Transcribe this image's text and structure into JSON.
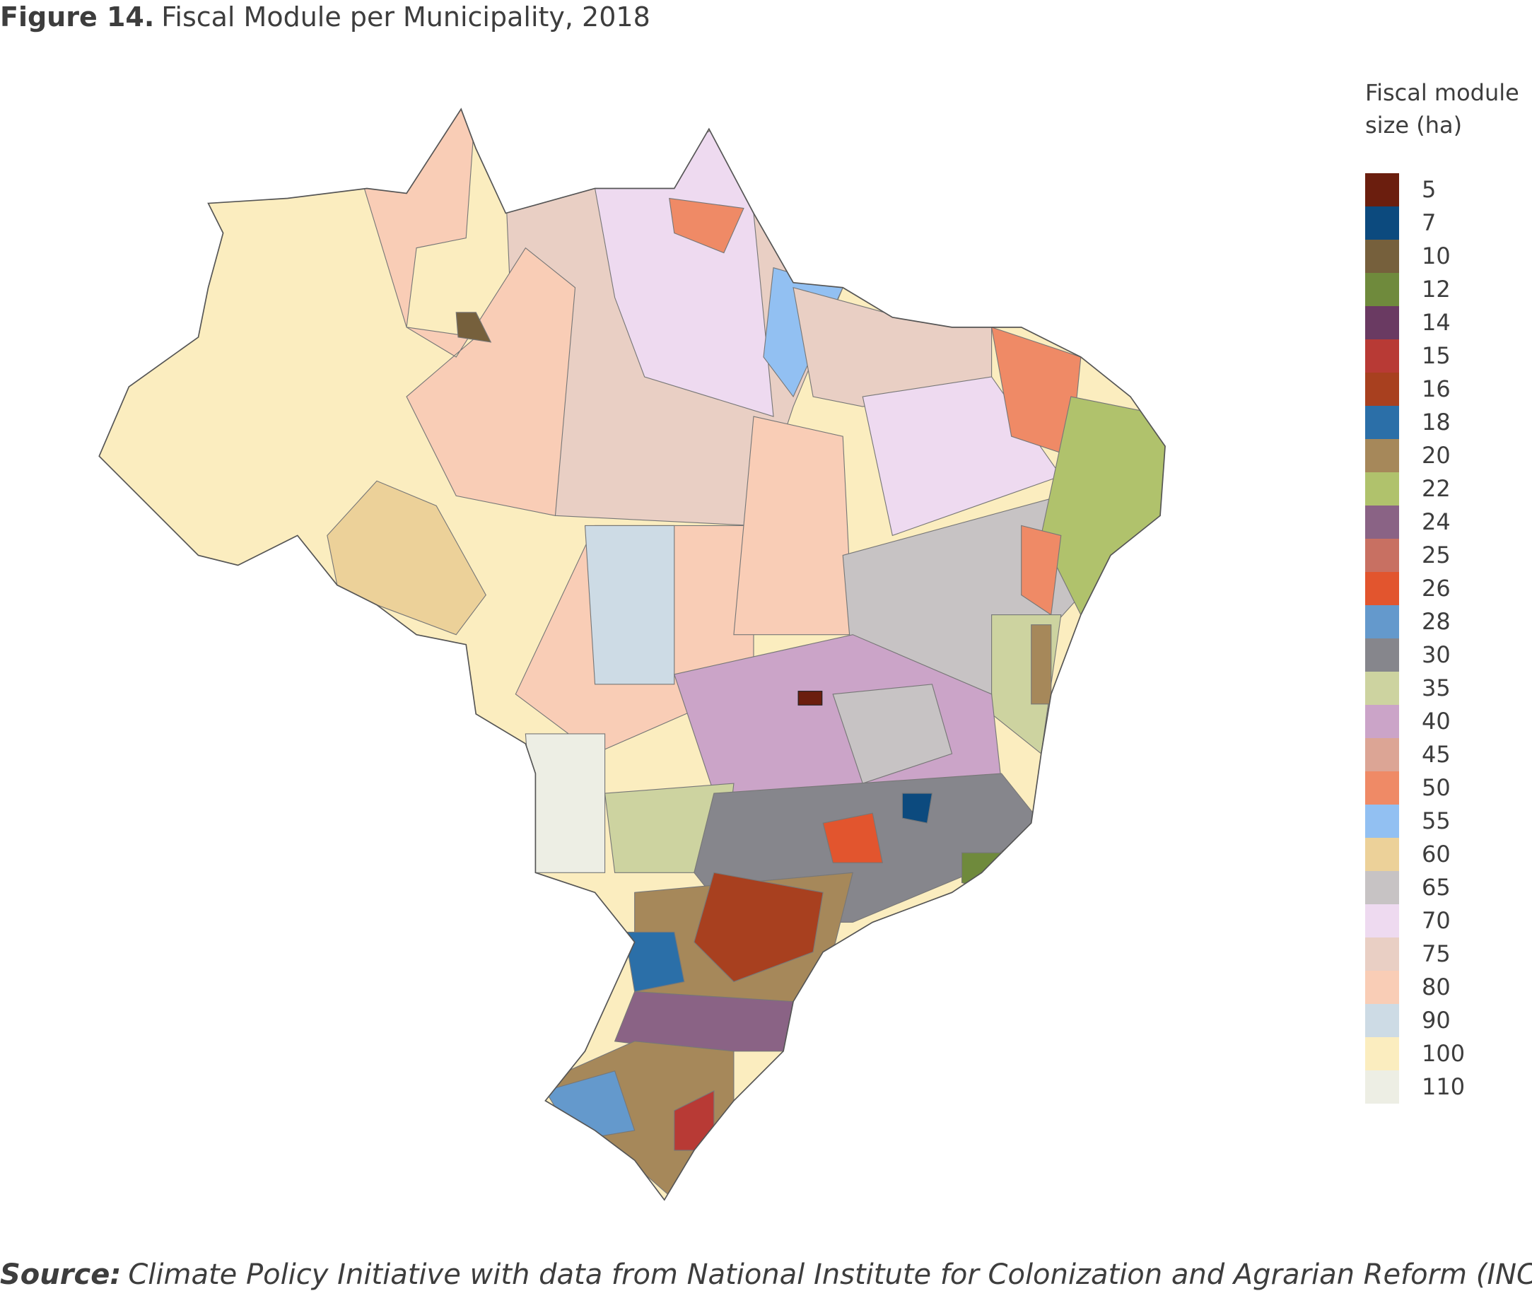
{
  "title": {
    "label": "Figure 14.",
    "text": "Fiscal Module per Municipality, 2018"
  },
  "legend": {
    "title": "Fiscal module size (ha)",
    "items": [
      {
        "value": 5,
        "color": "#6b1e0e"
      },
      {
        "value": 7,
        "color": "#0c4a7e"
      },
      {
        "value": 10,
        "color": "#76603c"
      },
      {
        "value": 12,
        "color": "#6f8a3c"
      },
      {
        "value": 14,
        "color": "#6a3a62"
      },
      {
        "value": 15,
        "color": "#b83a35"
      },
      {
        "value": 16,
        "color": "#a8401f"
      },
      {
        "value": 18,
        "color": "#2b6fa8"
      },
      {
        "value": 20,
        "color": "#a6885a"
      },
      {
        "value": 22,
        "color": "#b0c26c"
      },
      {
        "value": 24,
        "color": "#8a6385"
      },
      {
        "value": 25,
        "color": "#c87062"
      },
      {
        "value": 26,
        "color": "#e2552e"
      },
      {
        "value": 28,
        "color": "#6499cc"
      },
      {
        "value": 30,
        "color": "#86868c"
      },
      {
        "value": 35,
        "color": "#cdd3a0"
      },
      {
        "value": 40,
        "color": "#cba4c8"
      },
      {
        "value": 45,
        "color": "#dca595"
      },
      {
        "value": 50,
        "color": "#ef8a66"
      },
      {
        "value": 55,
        "color": "#92c0f2"
      },
      {
        "value": 60,
        "color": "#ecd199"
      },
      {
        "value": 65,
        "color": "#c7c3c4"
      },
      {
        "value": 70,
        "color": "#eedaf0"
      },
      {
        "value": 75,
        "color": "#e9cfc4"
      },
      {
        "value": 80,
        "color": "#f9cdb6"
      },
      {
        "value": 90,
        "color": "#cddbe5"
      },
      {
        "value": 100,
        "color": "#fbedbf"
      },
      {
        "value": 110,
        "color": "#edeee4"
      }
    ]
  },
  "source": {
    "label": "Source:",
    "text": "Climate Policy Initiative with data from National Institute for Colonization and Agrarian Reform (INCRA)"
  }
}
